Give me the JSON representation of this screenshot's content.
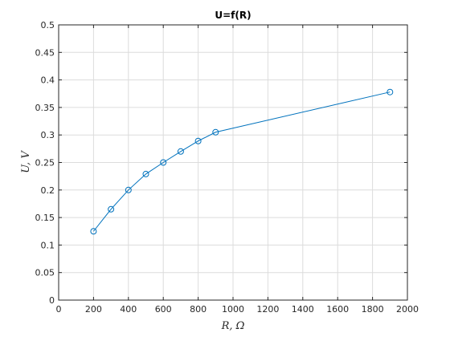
{
  "chart_data": {
    "type": "line",
    "title": "U=f(R)",
    "xlabel": "R, Ω",
    "ylabel": "U, V",
    "xlim": [
      0,
      2000
    ],
    "ylim": [
      0,
      0.5
    ],
    "xticks": [
      0,
      200,
      400,
      600,
      800,
      1000,
      1200,
      1400,
      1600,
      1800,
      2000
    ],
    "xtick_labels": [
      "0",
      "200",
      "400",
      "600",
      "800",
      "1000",
      "1200",
      "1400",
      "1600",
      "1800",
      "2000"
    ],
    "yticks": [
      0,
      0.05,
      0.1,
      0.15,
      0.2,
      0.25,
      0.3,
      0.35,
      0.4,
      0.45,
      0.5
    ],
    "ytick_labels": [
      "0",
      "0.05",
      "0.1",
      "0.15",
      "0.2",
      "0.25",
      "0.3",
      "0.35",
      "0.4",
      "0.45",
      "0.5"
    ],
    "grid": true,
    "series": [
      {
        "x": [
          200,
          300,
          400,
          500,
          600,
          700,
          800,
          900,
          1900
        ],
        "y": [
          0.125,
          0.165,
          0.2,
          0.229,
          0.25,
          0.27,
          0.289,
          0.305,
          0.378
        ],
        "marker": "circle",
        "color": "#0072BD"
      }
    ]
  }
}
